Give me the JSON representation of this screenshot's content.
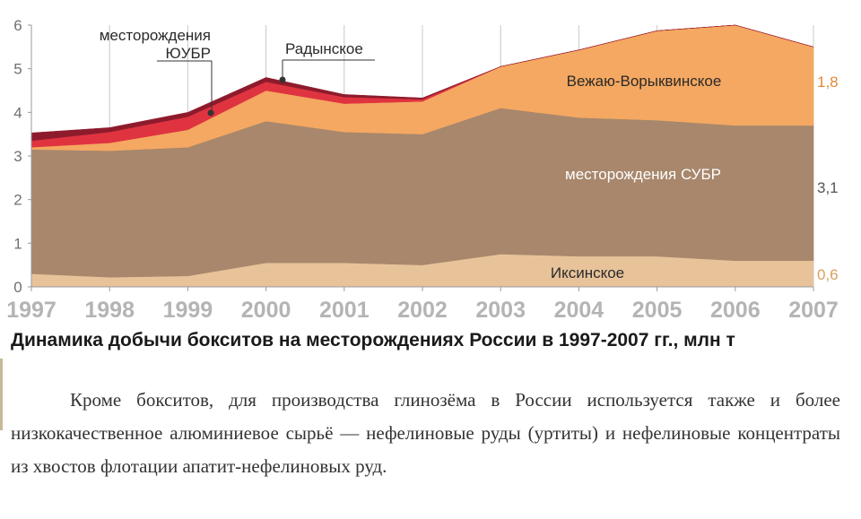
{
  "chart_data": {
    "type": "area",
    "stacked": true,
    "title": "Динамика добычи бокситов на месторождениях России в 1997-2007 гг., млн т",
    "x": [
      1997,
      1998,
      1999,
      2000,
      2001,
      2002,
      2003,
      2004,
      2005,
      2006,
      2007
    ],
    "x_tick_labels": [
      "1997",
      "1998",
      "1999",
      "2000",
      "2001",
      "2002",
      "2003",
      "2004",
      "2005",
      "2006",
      "2007"
    ],
    "ylim": [
      0,
      6
    ],
    "y_ticks": [
      0,
      1,
      2,
      3,
      4,
      5,
      6
    ],
    "y_tick_labels": [
      "0",
      "1",
      "2",
      "3",
      "4",
      "5",
      "6"
    ],
    "grid": "vertical",
    "series": [
      {
        "name": "Иксинское",
        "color": "#e8c39a",
        "values": [
          0.3,
          0.22,
          0.25,
          0.55,
          0.55,
          0.5,
          0.75,
          0.7,
          0.7,
          0.6,
          0.6
        ]
      },
      {
        "name": "месторождения СУБР",
        "color": "#a8876c",
        "values": [
          2.85,
          2.9,
          2.95,
          3.25,
          3.0,
          3.0,
          3.35,
          3.18,
          3.12,
          3.1,
          3.1
        ]
      },
      {
        "name": "Вежаю-Ворыквинское",
        "color": "#f4a861",
        "values": [
          0.05,
          0.18,
          0.4,
          0.7,
          0.65,
          0.75,
          0.95,
          1.55,
          2.05,
          2.3,
          1.8
        ]
      },
      {
        "name": "месторождения ЮУБР",
        "color": "#e03340",
        "values": [
          0.15,
          0.25,
          0.3,
          0.2,
          0.15,
          0.05,
          0,
          0,
          0,
          0,
          0
        ]
      },
      {
        "name": "Радынское",
        "color": "#8e1b2c",
        "values": [
          0.18,
          0.1,
          0.1,
          0.1,
          0.06,
          0.03,
          0,
          0,
          0,
          0,
          0
        ]
      }
    ],
    "series_labels": [
      "Иксинское",
      "месторождения СУБР",
      "Вежаю-Ворыквинское",
      "месторождения",
      "ЮУБР",
      "Радынское"
    ],
    "end_labels": [
      "0,6",
      "3,1",
      "1,8"
    ],
    "end_label_colors": [
      "#d6a25c",
      "#555555",
      "#e0893a"
    ]
  },
  "caption": "Динамика добычи бокситов на месторождениях России в 1997-2007 гг., млн т",
  "paragraph": "Кроме бокситов, для производства глинозёма в России используется также и более низкокачественное алюминиевое сырьё — нефелиновые руды (уртиты) и нефелиновые концентраты из хвостов флотации апатит-нефелиновых руд."
}
